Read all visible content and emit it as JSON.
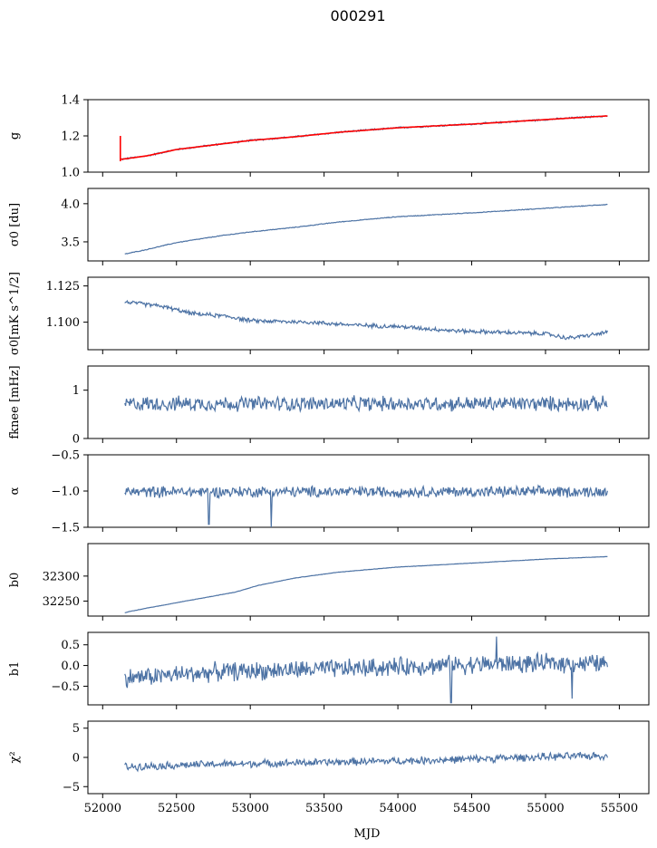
{
  "figure": {
    "title": "000291",
    "xlabel": "MJD",
    "xlim": [
      51900,
      55700
    ],
    "xticks": [
      52000,
      52500,
      53000,
      53500,
      54000,
      54500,
      55000,
      55500
    ],
    "line_color": "#4c72a4",
    "fit_color": "#ff0000"
  },
  "chart_data": [
    {
      "type": "line",
      "ylabel": "g",
      "ylim": [
        1.0,
        1.4
      ],
      "yticks": [
        1.0,
        1.2,
        1.4
      ],
      "yticklabels": [
        "1.0",
        "1.2",
        "1.4"
      ],
      "trend": [
        [
          52120,
          1.07
        ],
        [
          52300,
          1.09
        ],
        [
          52500,
          1.125
        ],
        [
          52800,
          1.155
        ],
        [
          53000,
          1.175
        ],
        [
          53300,
          1.195
        ],
        [
          53600,
          1.22
        ],
        [
          54000,
          1.245
        ],
        [
          54500,
          1.265
        ],
        [
          55000,
          1.29
        ],
        [
          55300,
          1.305
        ],
        [
          55420,
          1.31
        ]
      ],
      "noise": 0.004,
      "series": [
        {
          "name": "",
          "role": "data"
        },
        {
          "name": "",
          "role": "fit",
          "spike": {
            "x": 52120,
            "from": 1.06,
            "to": 1.2
          }
        }
      ]
    },
    {
      "type": "line",
      "ylabel": "σ0 [du]",
      "ylim": [
        3.25,
        4.2
      ],
      "yticks": [
        3.5,
        4.0
      ],
      "yticklabels": [
        "3.5",
        "4.0"
      ],
      "trend": [
        [
          52150,
          3.34
        ],
        [
          52300,
          3.4
        ],
        [
          52500,
          3.49
        ],
        [
          52800,
          3.58
        ],
        [
          53000,
          3.63
        ],
        [
          53300,
          3.69
        ],
        [
          53600,
          3.76
        ],
        [
          54000,
          3.83
        ],
        [
          54500,
          3.88
        ],
        [
          55000,
          3.94
        ],
        [
          55420,
          3.99
        ]
      ],
      "noise": 0.004
    },
    {
      "type": "line",
      "ylabel": "σ0[mK s^1/2]",
      "ylim": [
        1.081,
        1.131
      ],
      "yticks": [
        1.1,
        1.125
      ],
      "yticklabels": [
        "1.100",
        "1.125"
      ],
      "trend": [
        [
          52150,
          1.114
        ],
        [
          52400,
          1.111
        ],
        [
          52600,
          1.106
        ],
        [
          52850,
          1.104
        ],
        [
          53000,
          1.101
        ],
        [
          53400,
          1.1
        ],
        [
          53700,
          1.098
        ],
        [
          54000,
          1.097
        ],
        [
          54400,
          1.094
        ],
        [
          54700,
          1.093
        ],
        [
          55000,
          1.092
        ],
        [
          55150,
          1.089
        ],
        [
          55300,
          1.091
        ],
        [
          55420,
          1.093
        ]
      ],
      "noise": 0.0012
    },
    {
      "type": "line",
      "ylabel": "fknee [mHz]",
      "ylim": [
        0,
        1.5
      ],
      "yticks": [
        0,
        1
      ],
      "yticklabels": [
        "0",
        "1"
      ],
      "trend": [
        [
          52150,
          0.72
        ],
        [
          55420,
          0.72
        ]
      ],
      "noise": 0.13
    },
    {
      "type": "line",
      "ylabel": "α",
      "ylim": [
        -1.5,
        -0.5
      ],
      "yticks": [
        -1.5,
        -1.0,
        -0.5
      ],
      "yticklabels": [
        "−1.5",
        "−1.0",
        "−0.5"
      ],
      "trend": [
        [
          52150,
          -1.01
        ],
        [
          55420,
          -1.01
        ]
      ],
      "noise": 0.065,
      "dips": [
        [
          52720,
          -1.46
        ],
        [
          53140,
          -1.5
        ]
      ]
    },
    {
      "type": "line",
      "ylabel": "b0",
      "ylim": [
        32220,
        32365
      ],
      "yticks": [
        32250,
        32300
      ],
      "yticklabels": [
        "32250",
        "32300"
      ],
      "trend": [
        [
          52150,
          32227
        ],
        [
          52300,
          32236
        ],
        [
          52600,
          32252
        ],
        [
          52900,
          32268
        ],
        [
          53050,
          32281
        ],
        [
          53300,
          32296
        ],
        [
          53600,
          32308
        ],
        [
          54000,
          32318
        ],
        [
          54500,
          32326
        ],
        [
          55000,
          32334
        ],
        [
          55420,
          32339
        ]
      ],
      "noise": 0.3
    },
    {
      "type": "line",
      "ylabel": "b1",
      "ylim": [
        -0.95,
        0.8
      ],
      "yticks": [
        -0.5,
        0.0,
        0.5
      ],
      "yticklabels": [
        "−0.5",
        "0.0",
        "0.5"
      ],
      "trend": [
        [
          52150,
          -0.3
        ],
        [
          52800,
          -0.15
        ],
        [
          53600,
          -0.08
        ],
        [
          54400,
          0.02
        ],
        [
          55000,
          0.05
        ],
        [
          55420,
          0.05
        ]
      ],
      "noise": 0.19,
      "dips": [
        [
          54360,
          -0.9
        ],
        [
          54670,
          0.7
        ],
        [
          55180,
          -0.8
        ]
      ]
    },
    {
      "type": "line",
      "ylabel": "χ²",
      "ylim": [
        -6.2,
        6.2
      ],
      "yticks": [
        -5,
        0,
        5
      ],
      "yticklabels": [
        "−5",
        "0",
        "5"
      ],
      "trend": [
        [
          52150,
          -1.6
        ],
        [
          52700,
          -1.2
        ],
        [
          53400,
          -0.9
        ],
        [
          54200,
          -0.5
        ],
        [
          55000,
          0.1
        ],
        [
          55420,
          0.3
        ]
      ],
      "noise": 0.55
    }
  ]
}
